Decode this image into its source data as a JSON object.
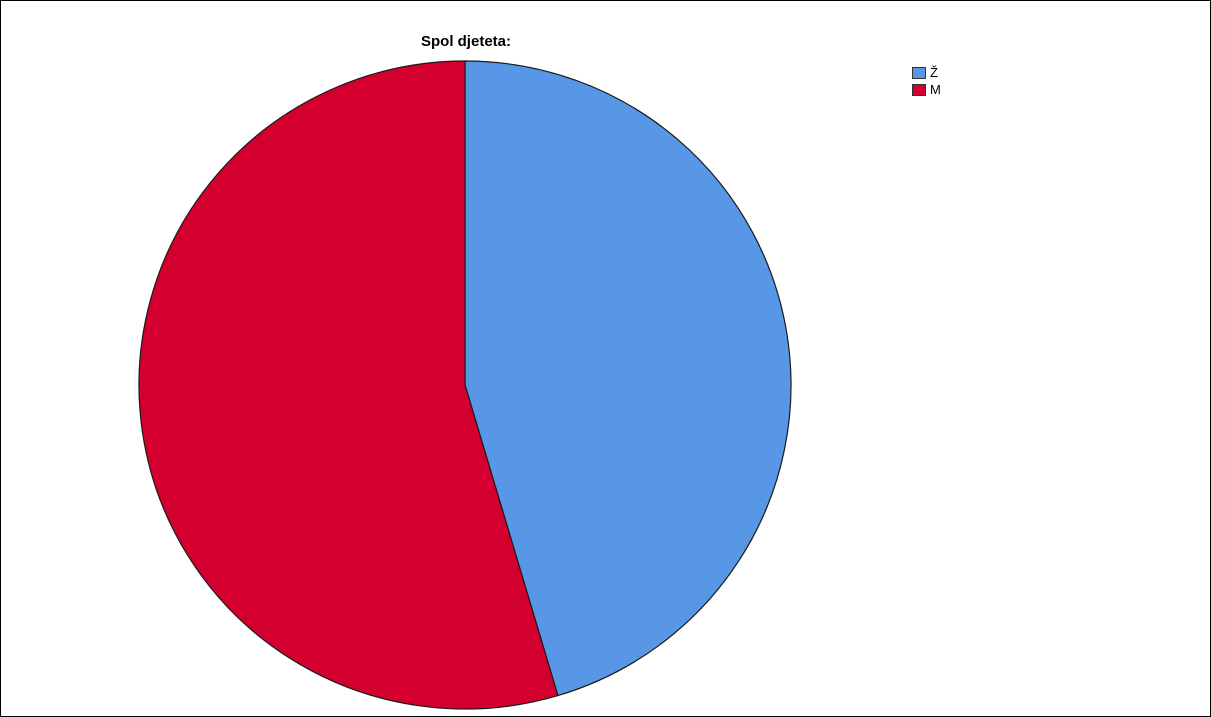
{
  "chart_data": {
    "type": "pie",
    "title": "Spol djeteta:",
    "categories": [
      "Ž",
      "M"
    ],
    "values": [
      45.4,
      54.6
    ],
    "colors": [
      "#5797E5",
      "#D3002F"
    ],
    "start_angle_deg": 0,
    "direction": "clockwise",
    "legend_position": "top-right"
  }
}
